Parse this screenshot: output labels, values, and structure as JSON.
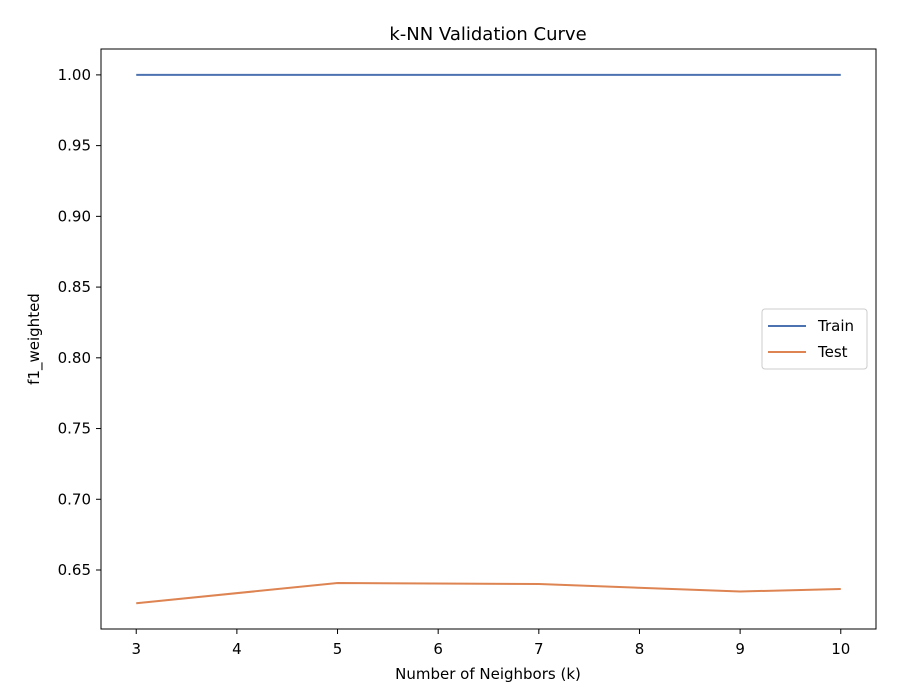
{
  "chart_data": {
    "type": "line",
    "title": "k-NN Validation Curve",
    "xlabel": "Number of Neighbors (k)",
    "ylabel": "f1_weighted",
    "x": [
      3,
      5,
      7,
      9,
      10
    ],
    "xticks": [
      3,
      4,
      5,
      6,
      7,
      8,
      9,
      10
    ],
    "xtick_labels": [
      "3",
      "4",
      "5",
      "6",
      "7",
      "8",
      "9",
      "10"
    ],
    "yticks": [
      0.65,
      0.7,
      0.75,
      0.8,
      0.85,
      0.9,
      0.95,
      1.0
    ],
    "ytick_labels": [
      "0.65",
      "0.70",
      "0.75",
      "0.80",
      "0.85",
      "0.90",
      "0.95",
      "1.00"
    ],
    "xlim": [
      2.65,
      10.35
    ],
    "ylim": [
      0.6083,
      1.0183
    ],
    "grid": false,
    "legend_position": "center-right",
    "series": [
      {
        "name": "Train",
        "color": "#4c72b0",
        "values": [
          1.0,
          1.0,
          1.0,
          1.0,
          1.0
        ]
      },
      {
        "name": "Test",
        "color": "#dd8452",
        "values": [
          0.6265,
          0.6408,
          0.6401,
          0.6348,
          0.6366
        ]
      }
    ]
  }
}
